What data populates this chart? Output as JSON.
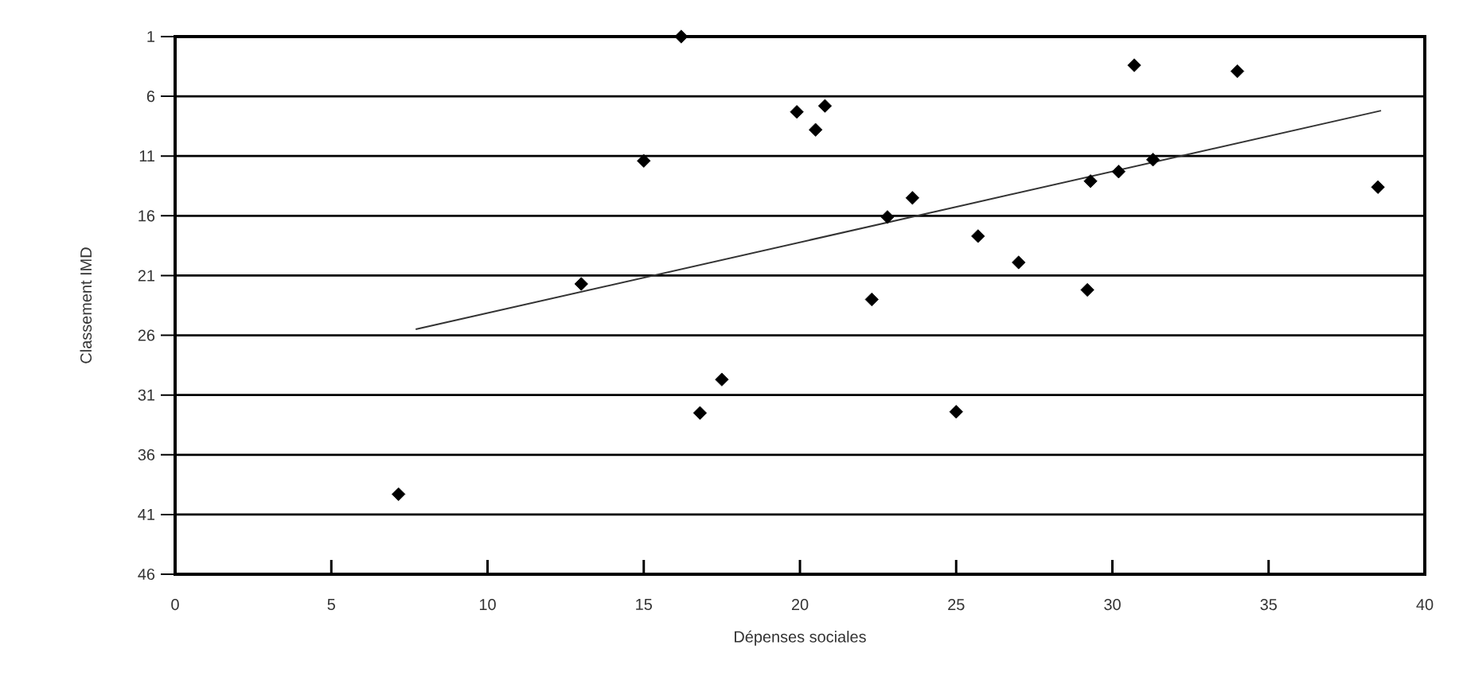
{
  "chart_data": {
    "type": "scatter",
    "xlabel": "Dépenses sociales",
    "ylabel": "Classement IMD",
    "xlim": [
      0,
      40
    ],
    "xticks": [
      0,
      5,
      10,
      15,
      20,
      25,
      30,
      35,
      40
    ],
    "ylim": [
      46,
      1
    ],
    "yticks": [
      1,
      6,
      11,
      16,
      21,
      26,
      31,
      36,
      41,
      46
    ],
    "grid": "y",
    "marker": "diamond",
    "series": [
      {
        "color": "#000000",
        "x": [
          7.15,
          13.0,
          15.0,
          16.2,
          16.8,
          17.5,
          19.9,
          20.8,
          20.5,
          22.3,
          22.8,
          23.6,
          25.0,
          25.7,
          27.0,
          29.2,
          29.3,
          30.2,
          30.7,
          31.3,
          34.0,
          38.5
        ],
        "values": [
          39.3,
          21.7,
          11.4,
          1,
          32.5,
          29.7,
          7.3,
          6.8,
          8.8,
          23.0,
          16.1,
          14.5,
          32.4,
          17.7,
          19.9,
          22.2,
          13.1,
          12.3,
          3.4,
          11.3,
          3.9,
          13.6
        ]
      },
      {
        "type": "line",
        "color": "#333333",
        "marker": "none",
        "x": [
          7.7,
          38.6
        ],
        "values": [
          25.5,
          7.2
        ]
      }
    ]
  }
}
